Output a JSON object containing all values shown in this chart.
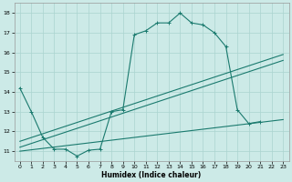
{
  "xlabel": "Humidex (Indice chaleur)",
  "bg_color": "#cceae7",
  "grid_color": "#aad4d0",
  "line_color": "#1a7a6e",
  "xlim": [
    -0.5,
    23.5
  ],
  "ylim": [
    10.5,
    18.5
  ],
  "xticks": [
    0,
    1,
    2,
    3,
    4,
    5,
    6,
    7,
    8,
    9,
    10,
    11,
    12,
    13,
    14,
    15,
    16,
    17,
    18,
    19,
    20,
    21,
    22,
    23
  ],
  "yticks": [
    11,
    12,
    13,
    14,
    15,
    16,
    17,
    18
  ],
  "curve_x": [
    0,
    1,
    2,
    3,
    4,
    5,
    6,
    7,
    8,
    9,
    10,
    11,
    12,
    13,
    14,
    15,
    16,
    17,
    18,
    19,
    20,
    21
  ],
  "curve_y": [
    14.2,
    13.0,
    11.7,
    11.1,
    11.1,
    10.75,
    11.05,
    11.1,
    13.0,
    13.1,
    16.9,
    17.1,
    17.5,
    17.5,
    18.0,
    17.5,
    17.4,
    17.0,
    16.3,
    13.1,
    12.4,
    12.5
  ],
  "trend1_x": [
    0,
    23
  ],
  "trend1_y": [
    11.5,
    15.9
  ],
  "trend2_x": [
    0,
    23
  ],
  "trend2_y": [
    11.2,
    15.6
  ],
  "trend3_x": [
    0,
    23
  ],
  "trend3_y": [
    11.0,
    12.6
  ]
}
